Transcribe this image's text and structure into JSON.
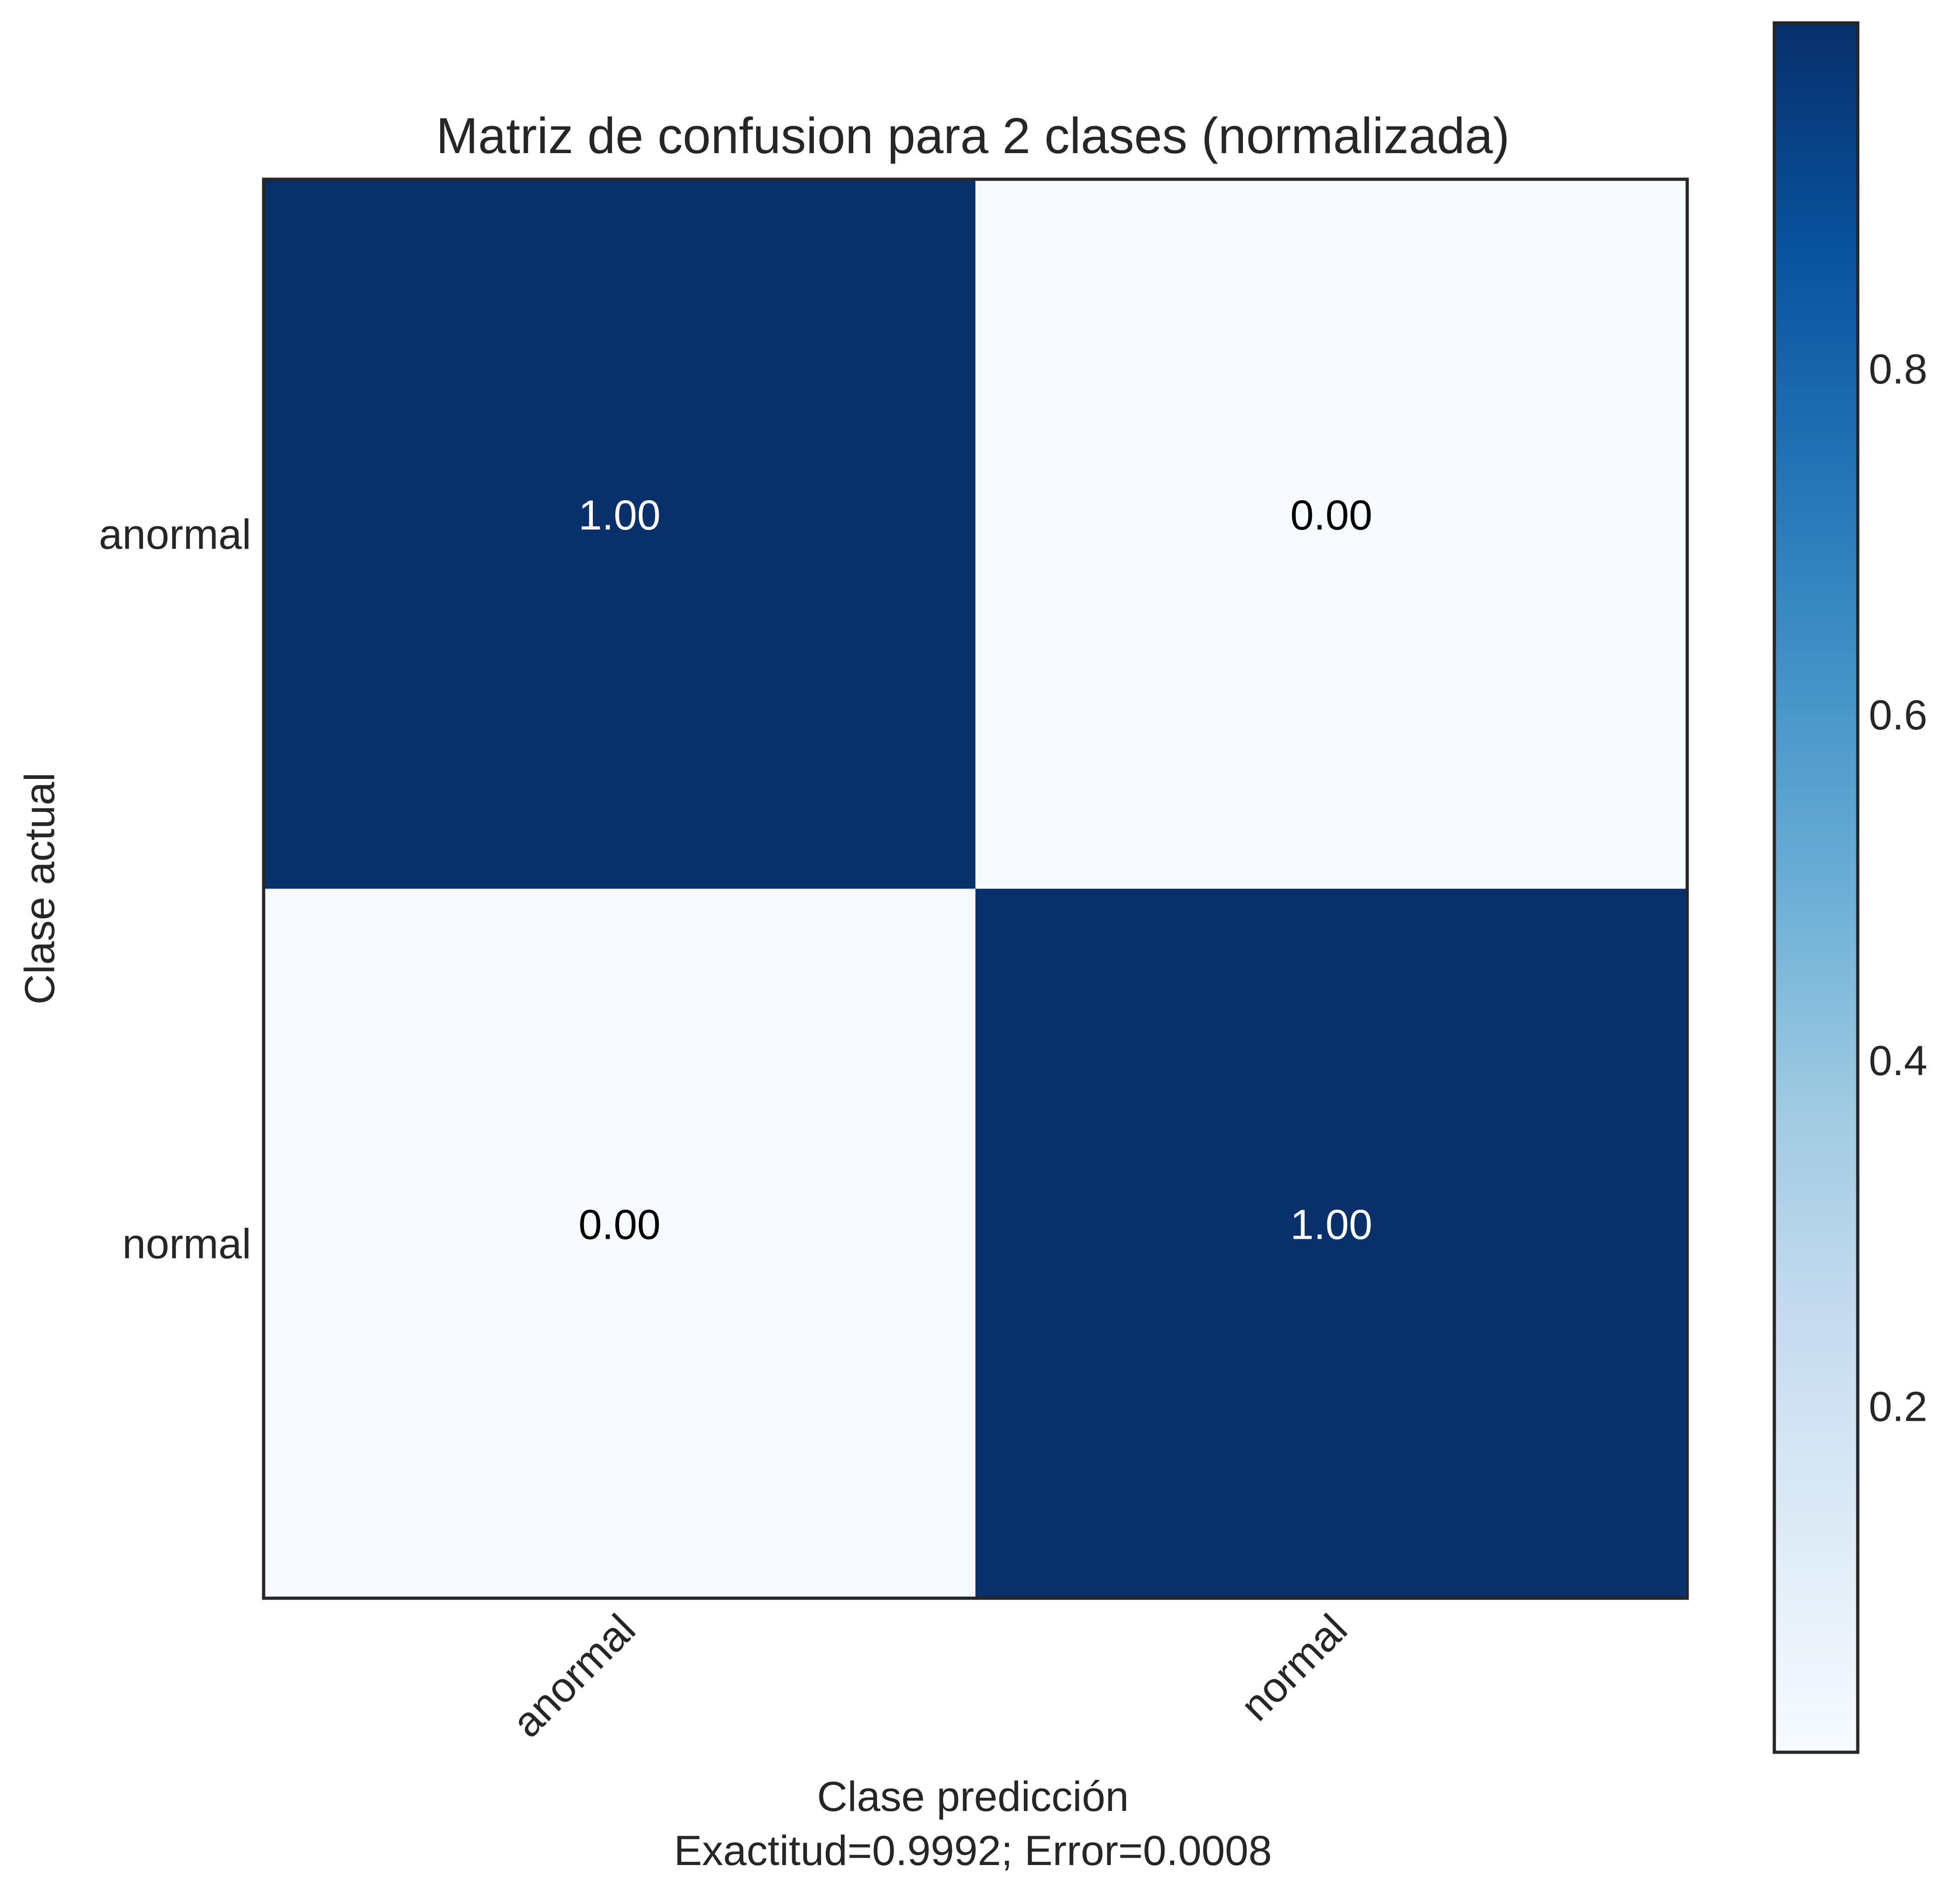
{
  "colors": {
    "dark": "#08306b",
    "light": "#f7fbff",
    "frame": "#262626",
    "text": "#262626",
    "cell_text_on_dark": "#ffffff",
    "cell_text_on_light": "#000000",
    "colormap": [
      "#f7fbff",
      "#deebf7",
      "#c6dbef",
      "#9ecae1",
      "#6baed6",
      "#4292c6",
      "#2171b5",
      "#08519c",
      "#08306b"
    ]
  },
  "chart_data": {
    "type": "heatmap",
    "title": "Matriz de confusion para 2 clases (normalizada)",
    "xlabel": "Clase predicción",
    "xlabel_sub": "Exactitud=0.9992; Error=0.0008",
    "ylabel": "Clase actual",
    "x_categories": [
      "anormal",
      "normal"
    ],
    "y_categories": [
      "anormal",
      "normal"
    ],
    "values": [
      [
        1.0,
        0.0
      ],
      [
        0.0,
        1.0
      ]
    ],
    "value_labels": [
      [
        "1.00",
        "0.00"
      ],
      [
        "0.00",
        "1.00"
      ]
    ],
    "colormap": "Blues",
    "colorbar": {
      "vmin": 0.0,
      "vmax": 1.0,
      "ticks": [
        0.2,
        0.4,
        0.6,
        0.8
      ],
      "tick_labels": [
        "0.2",
        "0.4",
        "0.6",
        "0.8"
      ]
    },
    "grid": false
  }
}
